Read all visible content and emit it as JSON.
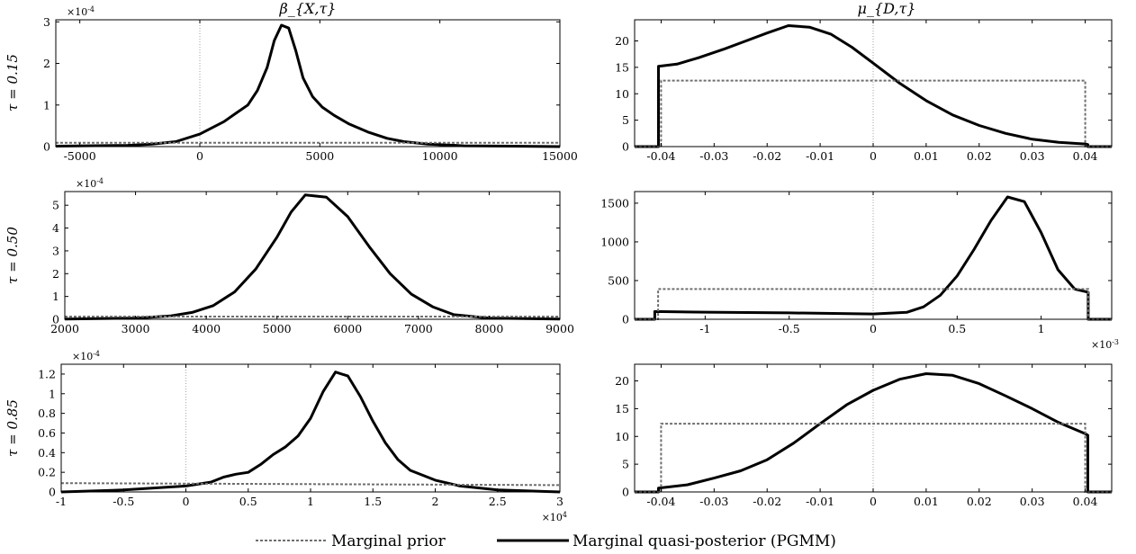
{
  "column_titles": [
    "β_{X,τ}",
    "μ_{D,τ}"
  ],
  "row_labels": [
    "τ = 0.15",
    "τ = 0.50",
    "τ = 0.85"
  ],
  "legend": {
    "prior_label": "Marginal prior",
    "posterior_label": "Marginal quasi-posterior (PGMM)"
  },
  "colors": {
    "posterior": "#000000",
    "prior": "#6e6e6e",
    "zero_line": "#b0b0b0",
    "axes": "#000000"
  },
  "chart_data": [
    {
      "type": "line",
      "row_label": "τ = 0.15",
      "title": "β_{X,τ}",
      "xlim": [
        -6000,
        15000
      ],
      "ylim": [
        0,
        3.05
      ],
      "xticks": [
        -5000,
        0,
        5000,
        10000,
        15000
      ],
      "xtick_labels": [
        "-5000",
        "0",
        "5000",
        "10000",
        "15000"
      ],
      "yticks": [
        0,
        1,
        2,
        3
      ],
      "ytick_labels": [
        "0",
        "1",
        "2",
        "3"
      ],
      "y_multiplier": "×10^-4",
      "x_multiplier": "",
      "zero_line": 0,
      "series": [
        {
          "role": "posterior",
          "x": [
            -6000,
            -3000,
            -2000,
            -1000,
            0,
            1000,
            1500,
            2000,
            2400,
            2800,
            3100,
            3400,
            3700,
            4000,
            4300,
            4700,
            5100,
            5600,
            6200,
            7000,
            7800,
            8500,
            9500,
            11000,
            13000,
            15000
          ],
          "y": [
            0.01,
            0.03,
            0.06,
            0.12,
            0.3,
            0.6,
            0.8,
            1.0,
            1.35,
            1.9,
            2.55,
            2.92,
            2.85,
            2.3,
            1.65,
            1.2,
            0.95,
            0.75,
            0.55,
            0.35,
            0.2,
            0.12,
            0.06,
            0.02,
            0.01,
            0.0
          ]
        },
        {
          "role": "prior",
          "x": [
            -6000,
            15000
          ],
          "y": [
            0.09,
            0.09
          ]
        }
      ]
    },
    {
      "type": "line",
      "row_label": "τ = 0.15",
      "title": "μ_{D,τ}",
      "xlim": [
        -0.045,
        0.045
      ],
      "ylim": [
        0,
        24
      ],
      "xticks": [
        -0.04,
        -0.03,
        -0.02,
        -0.01,
        0,
        0.01,
        0.02,
        0.03,
        0.04
      ],
      "xtick_labels": [
        "-0.04",
        "-0.03",
        "-0.02",
        "-0.01",
        "0",
        "0.01",
        "0.02",
        "0.03",
        "0.04"
      ],
      "yticks": [
        0,
        5,
        10,
        15,
        20
      ],
      "ytick_labels": [
        "0",
        "5",
        "10",
        "15",
        "20"
      ],
      "y_multiplier": "",
      "x_multiplier": "",
      "zero_line": 0,
      "series": [
        {
          "role": "posterior",
          "x": [
            -0.045,
            -0.0405,
            -0.0405,
            -0.037,
            -0.033,
            -0.028,
            -0.024,
            -0.02,
            -0.016,
            -0.012,
            -0.008,
            -0.004,
            0.0,
            0.005,
            0.01,
            0.015,
            0.02,
            0.025,
            0.03,
            0.035,
            0.04,
            0.0405,
            0.0405,
            0.045
          ],
          "y": [
            0,
            0,
            15.2,
            15.6,
            16.8,
            18.5,
            20.0,
            21.5,
            22.9,
            22.6,
            21.3,
            18.8,
            15.8,
            12.0,
            8.7,
            6.0,
            4.0,
            2.5,
            1.4,
            0.8,
            0.5,
            0.4,
            0,
            0
          ]
        },
        {
          "role": "prior",
          "x": [
            -0.045,
            -0.04,
            -0.04,
            0.04,
            0.04,
            0.045
          ],
          "y": [
            0,
            0,
            12.5,
            12.5,
            0,
            0
          ]
        }
      ]
    },
    {
      "type": "line",
      "row_label": "τ = 0.50",
      "title": "",
      "xlim": [
        2000,
        9000
      ],
      "ylim": [
        0,
        5.6
      ],
      "xticks": [
        2000,
        3000,
        4000,
        5000,
        6000,
        7000,
        8000,
        9000
      ],
      "xtick_labels": [
        "2000",
        "3000",
        "4000",
        "5000",
        "6000",
        "7000",
        "8000",
        "9000"
      ],
      "yticks": [
        0,
        1,
        2,
        3,
        4,
        5
      ],
      "ytick_labels": [
        "0",
        "1",
        "2",
        "3",
        "4",
        "5"
      ],
      "y_multiplier": "×10^-4",
      "x_multiplier": "",
      "zero_line": null,
      "series": [
        {
          "role": "posterior",
          "x": [
            2000,
            3000,
            3500,
            3800,
            4100,
            4400,
            4700,
            5000,
            5200,
            5400,
            5700,
            6000,
            6300,
            6600,
            6900,
            7200,
            7500,
            8000,
            9000
          ],
          "y": [
            0.01,
            0.05,
            0.15,
            0.3,
            0.6,
            1.2,
            2.2,
            3.6,
            4.7,
            5.45,
            5.35,
            4.5,
            3.2,
            2.0,
            1.1,
            0.55,
            0.2,
            0.05,
            0.01
          ]
        },
        {
          "role": "prior",
          "x": [
            2000,
            9000
          ],
          "y": [
            0.12,
            0.12
          ]
        }
      ]
    },
    {
      "type": "line",
      "row_label": "τ = 0.50",
      "title": "",
      "xlim": [
        -1.42,
        1.42
      ],
      "ylim": [
        0,
        1650
      ],
      "xticks": [
        -1,
        -0.5,
        0,
        0.5,
        1
      ],
      "xtick_labels": [
        "-1",
        "-0.5",
        "0",
        "0.5",
        "1"
      ],
      "yticks": [
        0,
        500,
        1000,
        1500
      ],
      "ytick_labels": [
        "0",
        "500",
        "1000",
        "1500"
      ],
      "y_multiplier": "",
      "x_multiplier": "×10^-3",
      "zero_line": 0,
      "series": [
        {
          "role": "posterior",
          "x": [
            -1.42,
            -1.3,
            -1.3,
            -1.0,
            -0.5,
            0.0,
            0.2,
            0.3,
            0.4,
            0.5,
            0.6,
            0.7,
            0.8,
            0.9,
            1.0,
            1.1,
            1.2,
            1.28,
            1.28,
            1.42
          ],
          "y": [
            0,
            0,
            100,
            92,
            82,
            68,
            90,
            160,
            310,
            560,
            900,
            1270,
            1580,
            1520,
            1120,
            640,
            390,
            350,
            0,
            0
          ]
        },
        {
          "role": "prior",
          "x": [
            -1.42,
            -1.28,
            -1.28,
            1.28,
            1.28,
            1.42
          ],
          "y": [
            0,
            0,
            390,
            390,
            0,
            0
          ]
        }
      ]
    },
    {
      "type": "line",
      "row_label": "τ = 0.85",
      "title": "",
      "xlim": [
        -1,
        3
      ],
      "ylim": [
        0,
        1.3
      ],
      "xticks": [
        -1,
        -0.5,
        0,
        0.5,
        1,
        1.5,
        2,
        2.5,
        3
      ],
      "xtick_labels": [
        "-1",
        "-0.5",
        "0",
        "0.5",
        "1",
        "1.5",
        "2",
        "2.5",
        "3"
      ],
      "yticks": [
        0,
        0.2,
        0.4,
        0.6,
        0.8,
        1,
        1.2
      ],
      "ytick_labels": [
        "0",
        "0.2",
        "0.4",
        "0.6",
        "0.8",
        "1",
        "1.2"
      ],
      "y_multiplier": "×10^-4",
      "x_multiplier": "×10^4",
      "zero_line": 0,
      "series": [
        {
          "role": "posterior",
          "x": [
            -1,
            -0.5,
            0,
            0.2,
            0.3,
            0.4,
            0.5,
            0.6,
            0.7,
            0.8,
            0.9,
            1.0,
            1.1,
            1.2,
            1.3,
            1.4,
            1.5,
            1.6,
            1.7,
            1.8,
            2.0,
            2.2,
            2.5,
            3.0
          ],
          "y": [
            0.0,
            0.02,
            0.06,
            0.1,
            0.15,
            0.18,
            0.2,
            0.28,
            0.38,
            0.46,
            0.57,
            0.75,
            1.02,
            1.22,
            1.18,
            0.97,
            0.72,
            0.5,
            0.33,
            0.22,
            0.12,
            0.06,
            0.02,
            0.0
          ]
        },
        {
          "role": "prior",
          "x": [
            -1,
            3
          ],
          "y": [
            0.09,
            0.07
          ]
        }
      ]
    },
    {
      "type": "line",
      "row_label": "τ = 0.85",
      "title": "",
      "xlim": [
        -0.045,
        0.045
      ],
      "ylim": [
        0,
        23
      ],
      "xticks": [
        -0.04,
        -0.03,
        -0.02,
        -0.01,
        0,
        0.01,
        0.02,
        0.03,
        0.04
      ],
      "xtick_labels": [
        "-0.04",
        "-0.03",
        "-0.02",
        "-0.01",
        "0",
        "0.01",
        "0.02",
        "0.03",
        "0.04"
      ],
      "yticks": [
        0,
        5,
        10,
        15,
        20
      ],
      "ytick_labels": [
        "0",
        "5",
        "10",
        "15",
        "20"
      ],
      "y_multiplier": "",
      "x_multiplier": "",
      "zero_line": 0,
      "series": [
        {
          "role": "posterior",
          "x": [
            -0.045,
            -0.0405,
            -0.0405,
            -0.035,
            -0.03,
            -0.025,
            -0.02,
            -0.015,
            -0.01,
            -0.005,
            0.0,
            0.005,
            0.01,
            0.015,
            0.02,
            0.025,
            0.03,
            0.035,
            0.04,
            0.0405,
            0.0405,
            0.045
          ],
          "y": [
            0,
            0,
            0.7,
            1.3,
            2.5,
            3.8,
            5.8,
            8.8,
            12.3,
            15.7,
            18.3,
            20.3,
            21.3,
            21.0,
            19.5,
            17.3,
            15.0,
            12.5,
            10.5,
            10.2,
            0,
            0
          ]
        },
        {
          "role": "prior",
          "x": [
            -0.045,
            -0.04,
            -0.04,
            0.04,
            0.04,
            0.045
          ],
          "y": [
            0,
            0,
            12.3,
            12.3,
            0,
            0
          ]
        }
      ]
    }
  ]
}
